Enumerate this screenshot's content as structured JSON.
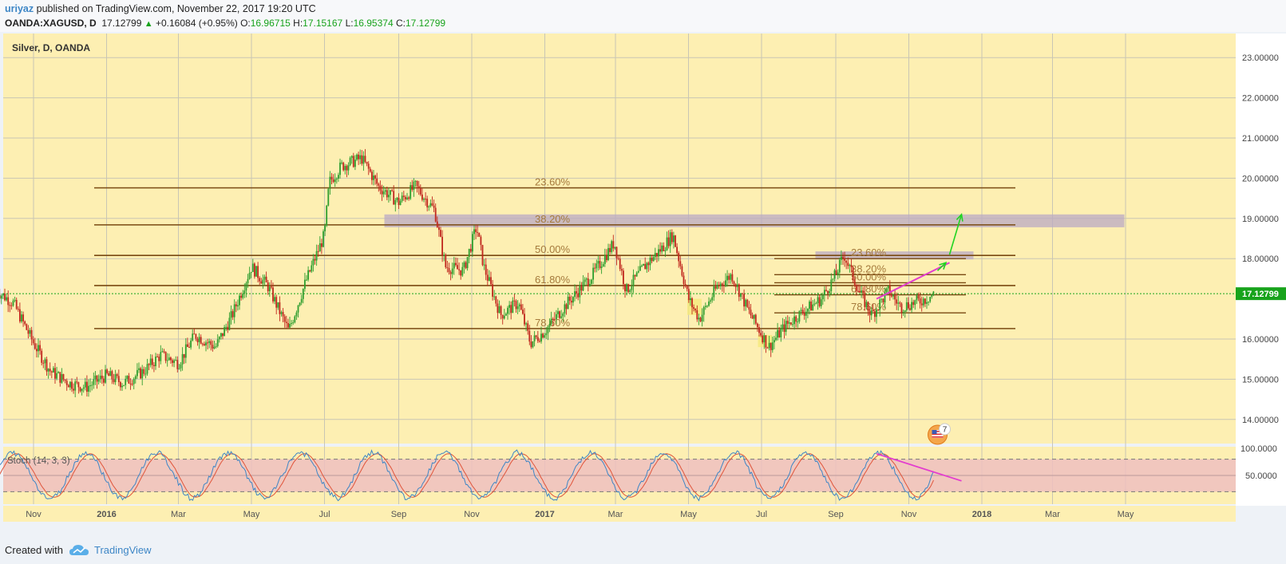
{
  "header": {
    "user": "uriyaz",
    "published_text": "published on TradingView.com, November 22, 2017 19:20 UTC",
    "symbol": "OANDA:XAGUSD, D",
    "last": "17.12799",
    "change": "+0.16084 (+0.95%)",
    "open_label": "O:",
    "open": "16.96715",
    "high_label": "H:",
    "high": "17.15167",
    "low_label": "L:",
    "low": "16.95374",
    "close_label": "C:",
    "close": "17.12799",
    "up_icon": "triangle-up-icon"
  },
  "footer": {
    "created_with": "Created with",
    "brand": "TradingView",
    "logo_icon": "tradingview-cloud-icon"
  },
  "chart_data": {
    "type": "candlestick",
    "title": "Silver, D, OANDA",
    "price_ticks": [
      "23.00000",
      "22.00000",
      "21.00000",
      "20.00000",
      "19.00000",
      "18.00000",
      "17.12799",
      "16.00000",
      "15.00000",
      "14.00000"
    ],
    "ylim": [
      13.4,
      23.6
    ],
    "x_ticks": [
      "Nov",
      "2016",
      "Mar",
      "May",
      "Jul",
      "Sep",
      "Nov",
      "2017",
      "Mar",
      "May",
      "Jul",
      "Sep",
      "Nov",
      "2018",
      "Mar",
      "May"
    ],
    "x_tick_dates": [
      "2015-11-01",
      "2016-01-01",
      "2016-03-01",
      "2016-05-01",
      "2016-07-01",
      "2016-09-01",
      "2016-11-01",
      "2017-01-01",
      "2017-03-01",
      "2017-05-01",
      "2017-07-01",
      "2017-09-01",
      "2017-11-01",
      "2018-01-01",
      "2018-03-01",
      "2018-05-01"
    ],
    "current_price": 17.12799,
    "colors": {
      "up": "#2e9e2e",
      "down": "#c0271d",
      "background": "#fdefb2",
      "fib": "#7a4a12",
      "fib_text": "#a57a3c",
      "zone": "#b9a9c4",
      "trend": "#e33ccf",
      "arrow": "#21d421",
      "price_label": "#18a31c",
      "stoch_k": "#3d86c6",
      "stoch_d": "#e0543a",
      "stoch_band": "#eec0c0"
    },
    "price_path": [
      [
        "2015-10-01",
        17.2
      ],
      [
        "2015-10-15",
        16.9
      ],
      [
        "2015-11-01",
        15.9
      ],
      [
        "2015-11-15",
        15.2
      ],
      [
        "2015-12-01",
        14.9
      ],
      [
        "2015-12-15",
        14.8
      ],
      [
        "2016-01-01",
        15.1
      ],
      [
        "2016-01-15",
        14.9
      ],
      [
        "2016-02-01",
        15.2
      ],
      [
        "2016-02-15",
        15.6
      ],
      [
        "2016-03-01",
        15.4
      ],
      [
        "2016-03-15",
        16.1
      ],
      [
        "2016-04-01",
        15.8
      ],
      [
        "2016-04-15",
        16.6
      ],
      [
        "2016-05-01",
        17.8
      ],
      [
        "2016-05-15",
        17.3
      ],
      [
        "2016-06-01",
        16.2
      ],
      [
        "2016-06-15",
        17.4
      ],
      [
        "2016-07-01",
        18.6
      ],
      [
        "2016-07-05",
        19.9
      ],
      [
        "2016-07-15",
        20.3
      ],
      [
        "2016-08-01",
        20.5
      ],
      [
        "2016-08-15",
        19.8
      ],
      [
        "2016-09-01",
        19.4
      ],
      [
        "2016-09-15",
        19.8
      ],
      [
        "2016-10-01",
        19.2
      ],
      [
        "2016-10-10",
        17.8
      ],
      [
        "2016-10-25",
        17.7
      ],
      [
        "2016-11-05",
        18.8
      ],
      [
        "2016-11-11",
        17.8
      ],
      [
        "2016-11-25",
        16.6
      ],
      [
        "2016-12-10",
        16.9
      ],
      [
        "2016-12-20",
        15.9
      ],
      [
        "2017-01-01",
        16.2
      ],
      [
        "2017-01-20",
        16.9
      ],
      [
        "2017-02-10",
        17.6
      ],
      [
        "2017-02-28",
        18.4
      ],
      [
        "2017-03-10",
        17.2
      ],
      [
        "2017-03-25",
        17.8
      ],
      [
        "2017-04-10",
        18.3
      ],
      [
        "2017-04-18",
        18.6
      ],
      [
        "2017-05-01",
        17.0
      ],
      [
        "2017-05-10",
        16.5
      ],
      [
        "2017-05-25",
        17.3
      ],
      [
        "2017-06-06",
        17.6
      ],
      [
        "2017-06-20",
        16.7
      ],
      [
        "2017-07-07",
        15.8
      ],
      [
        "2017-07-20",
        16.3
      ],
      [
        "2017-08-01",
        16.6
      ],
      [
        "2017-08-20",
        17.0
      ],
      [
        "2017-09-01",
        17.6
      ],
      [
        "2017-09-08",
        18.1
      ],
      [
        "2017-09-20",
        17.2
      ],
      [
        "2017-10-01",
        16.6
      ],
      [
        "2017-10-15",
        17.2
      ],
      [
        "2017-10-25",
        16.8
      ],
      [
        "2017-11-05",
        16.9
      ],
      [
        "2017-11-15",
        17.0
      ],
      [
        "2017-11-22",
        17.12
      ]
    ],
    "fib_set_1": {
      "levels": [
        {
          "label": "23.60%",
          "price": 19.76
        },
        {
          "label": "38.20%",
          "price": 18.84
        },
        {
          "label": "50.00%",
          "price": 18.08
        },
        {
          "label": "61.80%",
          "price": 17.33
        },
        {
          "label": "78.60%",
          "price": 16.26
        }
      ]
    },
    "fib_set_2": {
      "levels": [
        {
          "label": "23.60%",
          "price": 18.0
        },
        {
          "label": "38.20%",
          "price": 17.6
        },
        {
          "label": "50.00%",
          "price": 17.4
        },
        {
          "label": "61.80%",
          "price": 17.1
        },
        {
          "label": "78.60%",
          "price": 16.65
        }
      ]
    },
    "zones": [
      {
        "start": "2016-08-20",
        "end": "2018-04-30",
        "top": 19.1,
        "bottom": 18.78
      },
      {
        "start": "2017-08-15",
        "end": "2017-12-25",
        "top": 18.18,
        "bottom": 17.98
      }
    ],
    "highlights": [
      {
        "start": "2017-04-30",
        "end": "2017-05-12",
        "top": 17.0,
        "bottom": 16.6
      },
      {
        "start": "2017-06-28",
        "end": "2017-07-10",
        "top": 16.1,
        "bottom": 15.8
      }
    ],
    "trendline": {
      "from": [
        "2017-10-05",
        17.0
      ],
      "to": [
        "2017-12-05",
        17.9
      ]
    },
    "arrows": [
      {
        "from": [
          "2017-11-25",
          17.7
        ],
        "to": [
          "2017-12-02",
          17.9
        ]
      },
      {
        "from": [
          "2017-12-05",
          18.1
        ],
        "to": [
          "2017-12-15",
          19.1
        ]
      }
    ],
    "event_badge": {
      "date": "2017-11-25",
      "count": "7",
      "icon": "us-flag-events-icon"
    },
    "indicator": {
      "name": "Stoch (14, 3, 3)",
      "ticks": [
        "100.0000",
        "50.0000"
      ],
      "levels": [
        80,
        20
      ],
      "trendline": {
        "from": [
          "2017-10-05",
          90
        ],
        "to": [
          "2017-12-15",
          40
        ]
      }
    }
  }
}
